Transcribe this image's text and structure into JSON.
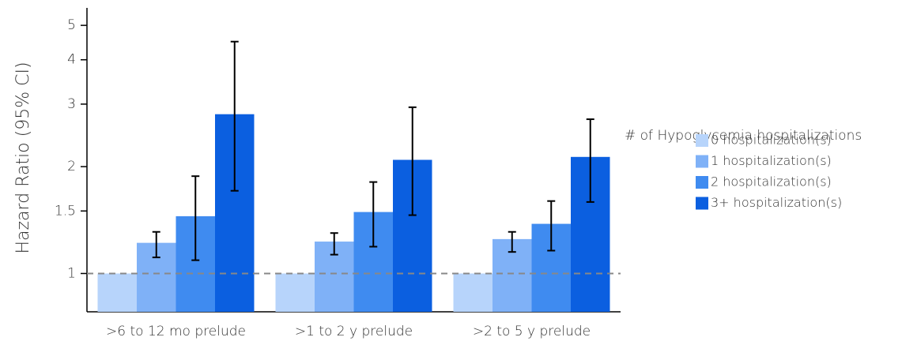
{
  "chart_data": {
    "type": "bar",
    "y_label": "Hazard Ratio (95% CI)",
    "categories": [
      ">6 to 12 mo prelude",
      ">1 to 2 y prelude",
      ">2 to 5 y prelude"
    ],
    "series": [
      {
        "name": "0 hospitalization(s)",
        "color": "#b7d4fb",
        "values": [
          1.0,
          1.0,
          1.0
        ],
        "ci_low": [
          null,
          null,
          null
        ],
        "ci_high": [
          null,
          null,
          null
        ]
      },
      {
        "name": "1 hospitalization(s)",
        "color": "#7fb1f7",
        "values": [
          1.22,
          1.23,
          1.25
        ],
        "ci_low": [
          1.11,
          1.13,
          1.15
        ],
        "ci_high": [
          1.31,
          1.3,
          1.31
        ]
      },
      {
        "name": "2 hospitalization(s)",
        "color": "#3f8bf0",
        "values": [
          1.45,
          1.49,
          1.38
        ],
        "ci_low": [
          1.09,
          1.19,
          1.16
        ],
        "ci_high": [
          1.88,
          1.81,
          1.6
        ]
      },
      {
        "name": "3+ hospitalization(s)",
        "color": "#0b5fe0",
        "values": [
          2.81,
          2.09,
          2.13
        ],
        "ci_low": [
          1.71,
          1.46,
          1.59
        ],
        "ci_high": [
          4.5,
          2.94,
          2.72
        ]
      }
    ],
    "legend_title": "# of Hypoglycemia hospitalizations",
    "ylim": [
      0.78,
      5.6
    ],
    "yticks": [
      1,
      1.5,
      2,
      3,
      4,
      5
    ],
    "log_scale": true,
    "reference_line": 1,
    "legend_position": "right"
  }
}
